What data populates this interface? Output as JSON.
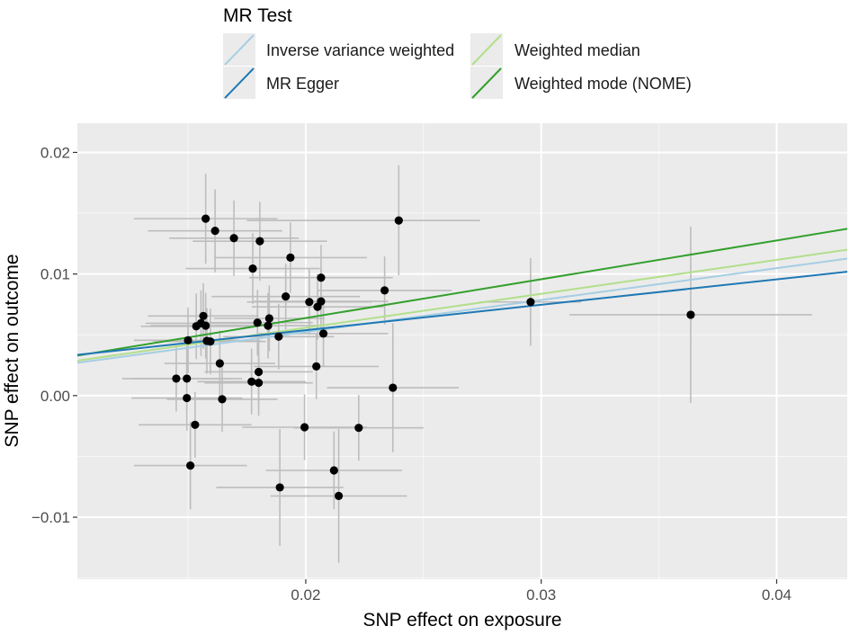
{
  "chart_data": {
    "type": "scatter",
    "xlabel": "SNP effect on exposure",
    "ylabel": "SNP effect on outcome",
    "xlim": [
      0.0103,
      0.043
    ],
    "ylim": [
      -0.0151,
      0.0224
    ],
    "x_ticks": [
      {
        "value": 0.02,
        "label": "0.02"
      },
      {
        "value": 0.03,
        "label": "0.03"
      },
      {
        "value": 0.04,
        "label": "0.04"
      }
    ],
    "y_ticks": [
      {
        "value": -0.01,
        "label": "−0.01"
      },
      {
        "value": 0.0,
        "label": "0.00"
      },
      {
        "value": 0.01,
        "label": "0.01"
      },
      {
        "value": 0.02,
        "label": "0.02"
      }
    ],
    "legend": {
      "title": "MR Test",
      "position": "top",
      "entries": [
        {
          "label": "Inverse variance weighted",
          "color": "#a6cee3"
        },
        {
          "label": "Weighted median",
          "color": "#b2df8a"
        },
        {
          "label": "MR Egger",
          "color": "#1f78b4"
        },
        {
          "label": "Weighted mode (NOME)",
          "color": "#33a02c"
        }
      ]
    },
    "lines": [
      {
        "name": "Weighted mode (NOME)",
        "color": "#33a02c",
        "intercept": 0.0,
        "slope": 0.319
      },
      {
        "name": "Weighted median",
        "color": "#b2df8a",
        "intercept": 0.0,
        "slope": 0.279
      },
      {
        "name": "Inverse variance weighted",
        "color": "#a6cee3",
        "intercept": 0.0,
        "slope": 0.262
      },
      {
        "name": "MR Egger",
        "color": "#1f78b4",
        "intercept": 0.0012,
        "slope": 0.209
      }
    ],
    "points": [
      {
        "x": 0.01575,
        "y": 0.01455,
        "xlo": 0.0127,
        "xhi": 0.0188,
        "ylo": 0.01085,
        "yhi": 0.01825
      },
      {
        "x": 0.01615,
        "y": 0.01355,
        "xlo": 0.0133,
        "xhi": 0.019,
        "ylo": 0.01015,
        "yhi": 0.01695
      },
      {
        "x": 0.01695,
        "y": 0.01295,
        "xlo": 0.0142,
        "xhi": 0.0197,
        "ylo": 0.00985,
        "yhi": 0.01605
      },
      {
        "x": 0.01805,
        "y": 0.0127,
        "xlo": 0.0152,
        "xhi": 0.0209,
        "ylo": 0.00945,
        "yhi": 0.01595
      },
      {
        "x": 0.02395,
        "y": 0.0144,
        "xlo": 0.0175,
        "xhi": 0.0274,
        "ylo": 0.0099,
        "yhi": 0.01895
      },
      {
        "x": 0.01775,
        "y": 0.01045,
        "xlo": 0.0149,
        "xhi": 0.0206,
        "ylo": 0.00755,
        "yhi": 0.01335
      },
      {
        "x": 0.01935,
        "y": 0.01135,
        "xlo": 0.0161,
        "xhi": 0.0226,
        "ylo": 0.00845,
        "yhi": 0.01425
      },
      {
        "x": 0.02065,
        "y": 0.0097,
        "xlo": 0.0176,
        "xhi": 0.0237,
        "ylo": 0.007,
        "yhi": 0.0124
      },
      {
        "x": 0.01915,
        "y": 0.00815,
        "xlo": 0.016,
        "xhi": 0.0223,
        "ylo": 0.00545,
        "yhi": 0.01085
      },
      {
        "x": 0.02335,
        "y": 0.00865,
        "xlo": 0.0205,
        "xhi": 0.0262,
        "ylo": 0.00585,
        "yhi": 0.01145
      },
      {
        "x": 0.02015,
        "y": 0.0077,
        "xlo": 0.0175,
        "xhi": 0.0228,
        "ylo": 0.005,
        "yhi": 0.0104
      },
      {
        "x": 0.02065,
        "y": 0.00775,
        "xlo": 0.0178,
        "xhi": 0.0235,
        "ylo": 0.00505,
        "yhi": 0.01045
      },
      {
        "x": 0.0205,
        "y": 0.0073,
        "xlo": 0.0177,
        "xhi": 0.0233,
        "ylo": 0.0046,
        "yhi": 0.01
      },
      {
        "x": 0.02075,
        "y": 0.0051,
        "xlo": 0.018,
        "xhi": 0.0235,
        "ylo": 0.0024,
        "yhi": 0.0078
      },
      {
        "x": 0.02955,
        "y": 0.0077,
        "xlo": 0.0274,
        "xhi": 0.0317,
        "ylo": 0.0041,
        "yhi": 0.0113
      },
      {
        "x": 0.03635,
        "y": 0.00665,
        "xlo": 0.0312,
        "xhi": 0.0415,
        "ylo": -0.0006,
        "yhi": 0.0139
      },
      {
        "x": 0.01565,
        "y": 0.00655,
        "xlo": 0.0133,
        "xhi": 0.018,
        "ylo": 0.00385,
        "yhi": 0.00925
      },
      {
        "x": 0.01535,
        "y": 0.0057,
        "xlo": 0.013,
        "xhi": 0.0177,
        "ylo": 0.003,
        "yhi": 0.0084
      },
      {
        "x": 0.01555,
        "y": 0.00595,
        "xlo": 0.0132,
        "xhi": 0.0179,
        "ylo": 0.00325,
        "yhi": 0.00865
      },
      {
        "x": 0.01575,
        "y": 0.00575,
        "xlo": 0.0134,
        "xhi": 0.0181,
        "ylo": 0.00305,
        "yhi": 0.00845
      },
      {
        "x": 0.015,
        "y": 0.00455,
        "xlo": 0.0127,
        "xhi": 0.0173,
        "ylo": 0.00185,
        "yhi": 0.00725
      },
      {
        "x": 0.0158,
        "y": 0.0045,
        "xlo": 0.0135,
        "xhi": 0.0181,
        "ylo": 0.0018,
        "yhi": 0.0072
      },
      {
        "x": 0.01595,
        "y": 0.00445,
        "xlo": 0.0136,
        "xhi": 0.0183,
        "ylo": 0.00175,
        "yhi": 0.00715
      },
      {
        "x": 0.01795,
        "y": 0.006,
        "xlo": 0.0156,
        "xhi": 0.0203,
        "ylo": 0.0033,
        "yhi": 0.0087
      },
      {
        "x": 0.01845,
        "y": 0.00635,
        "xlo": 0.0161,
        "xhi": 0.0208,
        "ylo": 0.00365,
        "yhi": 0.00905
      },
      {
        "x": 0.0184,
        "y": 0.00575,
        "xlo": 0.0161,
        "xhi": 0.0207,
        "ylo": 0.00305,
        "yhi": 0.00845
      },
      {
        "x": 0.01885,
        "y": 0.00485,
        "xlo": 0.0165,
        "xhi": 0.0212,
        "ylo": 0.00215,
        "yhi": 0.00755
      },
      {
        "x": 0.0145,
        "y": 0.0014,
        "xlo": 0.0122,
        "xhi": 0.0168,
        "ylo": -0.0013,
        "yhi": 0.0041
      },
      {
        "x": 0.01495,
        "y": 0.0014,
        "xlo": 0.0126,
        "xhi": 0.0173,
        "ylo": -0.0013,
        "yhi": 0.0041
      },
      {
        "x": 0.01495,
        "y": -0.0002,
        "xlo": 0.0126,
        "xhi": 0.0173,
        "ylo": -0.0029,
        "yhi": 0.0025
      },
      {
        "x": 0.01635,
        "y": 0.00265,
        "xlo": 0.014,
        "xhi": 0.0187,
        "ylo": -5e-05,
        "yhi": 0.00535
      },
      {
        "x": 0.01645,
        "y": -0.0003,
        "xlo": 0.0141,
        "xhi": 0.0188,
        "ylo": -0.003,
        "yhi": 0.0024
      },
      {
        "x": 0.0177,
        "y": 0.00115,
        "xlo": 0.0154,
        "xhi": 0.02,
        "ylo": -0.00155,
        "yhi": 0.00385
      },
      {
        "x": 0.018,
        "y": 0.00195,
        "xlo": 0.0157,
        "xhi": 0.0203,
        "ylo": -0.00075,
        "yhi": 0.00465
      },
      {
        "x": 0.018,
        "y": 0.00105,
        "xlo": 0.0157,
        "xhi": 0.0203,
        "ylo": -0.00165,
        "yhi": 0.00375
      },
      {
        "x": 0.02045,
        "y": 0.0024,
        "xlo": 0.0178,
        "xhi": 0.0231,
        "ylo": -0.0003,
        "yhi": 0.0051
      },
      {
        "x": 0.0237,
        "y": 0.00065,
        "xlo": 0.0209,
        "xhi": 0.0265,
        "ylo": -0.00465,
        "yhi": 0.00595
      },
      {
        "x": 0.0153,
        "y": -0.0024,
        "xlo": 0.0129,
        "xhi": 0.0177,
        "ylo": -0.0051,
        "yhi": 0.0003
      },
      {
        "x": 0.01995,
        "y": -0.0026,
        "xlo": 0.0173,
        "xhi": 0.0226,
        "ylo": -0.0053,
        "yhi": 0.0001
      },
      {
        "x": 0.02225,
        "y": -0.00265,
        "xlo": 0.0195,
        "xhi": 0.025,
        "ylo": -0.00535,
        "yhi": 5e-05
      },
      {
        "x": 0.0151,
        "y": -0.00575,
        "xlo": 0.0127,
        "xhi": 0.0175,
        "ylo": -0.00935,
        "yhi": -0.00215
      },
      {
        "x": 0.0212,
        "y": -0.00615,
        "xlo": 0.0183,
        "xhi": 0.0241,
        "ylo": -0.00935,
        "yhi": -0.00295
      },
      {
        "x": 0.0189,
        "y": -0.00755,
        "xlo": 0.0162,
        "xhi": 0.0216,
        "ylo": -0.01235,
        "yhi": -0.00275
      },
      {
        "x": 0.0214,
        "y": -0.00825,
        "xlo": 0.0185,
        "xhi": 0.0243,
        "ylo": -0.01375,
        "yhi": -0.00275
      }
    ]
  }
}
